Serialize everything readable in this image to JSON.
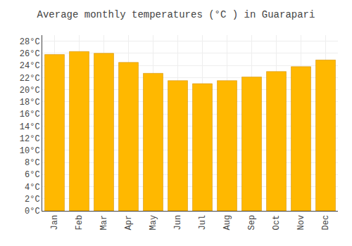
{
  "chart_data": {
    "type": "bar",
    "title": "Average monthly temperatures (°C ) in Guarapari",
    "categories": [
      "Jan",
      "Feb",
      "Mar",
      "Apr",
      "May",
      "Jun",
      "Jul",
      "Aug",
      "Sep",
      "Oct",
      "Nov",
      "Dec"
    ],
    "values": [
      25.8,
      26.3,
      26.0,
      24.5,
      22.7,
      21.5,
      21.0,
      21.5,
      22.1,
      23.0,
      23.8,
      24.9
    ],
    "color": "#FFB800",
    "ylim": [
      0,
      29
    ],
    "yticks": [
      {
        "value": 0,
        "label": "0°C"
      },
      {
        "value": 2,
        "label": "2°C"
      },
      {
        "value": 4,
        "label": "4°C"
      },
      {
        "value": 6,
        "label": "6°C"
      },
      {
        "value": 8,
        "label": "8°C"
      },
      {
        "value": 10,
        "label": "10°C"
      },
      {
        "value": 12,
        "label": "12°C"
      },
      {
        "value": 14,
        "label": "14°C"
      },
      {
        "value": 16,
        "label": "16°C"
      },
      {
        "value": 18,
        "label": "18°C"
      },
      {
        "value": 20,
        "label": "20°C"
      },
      {
        "value": 22,
        "label": "22°C"
      },
      {
        "value": 24,
        "label": "24°C"
      },
      {
        "value": 26,
        "label": "26°C"
      },
      {
        "value": 28,
        "label": "28°C"
      }
    ],
    "grid": true
  }
}
